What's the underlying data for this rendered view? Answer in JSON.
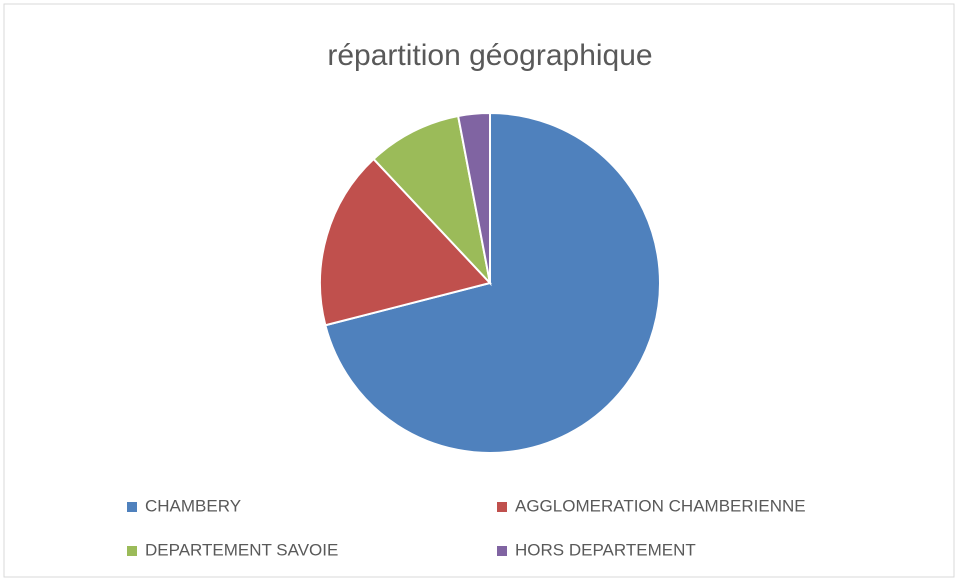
{
  "chart_data": {
    "type": "pie",
    "title": "répartition géographique",
    "categories": [
      "CHAMBERY",
      "AGGLOMERATION CHAMBERIENNE",
      "DEPARTEMENT SAVOIE",
      "HORS DEPARTEMENT"
    ],
    "values": [
      71,
      17,
      9,
      3
    ],
    "colors": [
      "#4f81bd",
      "#c0504d",
      "#9bbb59",
      "#8064a2"
    ],
    "legend": "bottom"
  }
}
